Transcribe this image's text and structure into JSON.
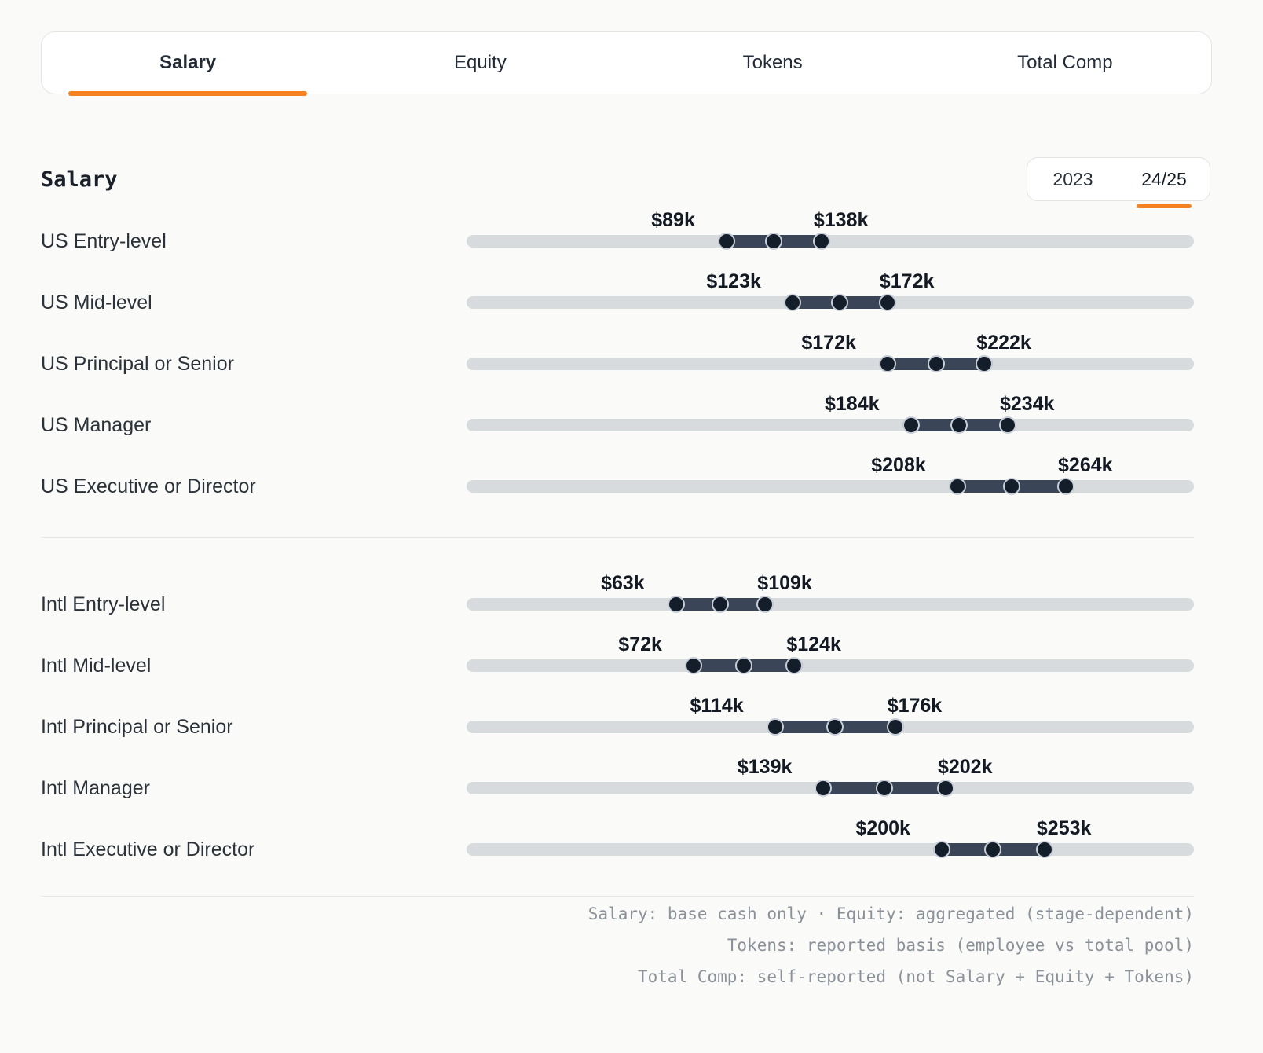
{
  "tabs": [
    {
      "label": "Salary",
      "active": true
    },
    {
      "label": "Equity",
      "active": false
    },
    {
      "label": "Tokens",
      "active": false
    },
    {
      "label": "Total Comp",
      "active": false
    }
  ],
  "section": {
    "title": "Salary"
  },
  "year_toggle": {
    "options": [
      "2023",
      "24/25"
    ],
    "selected": "24/25"
  },
  "chart_data": {
    "type": "bar",
    "variant": "horizontal-dumbbell-range",
    "title": "Salary",
    "unit": "USD thousands per year",
    "xlim": [
      -45,
      330
    ],
    "handles_per_row": [
      "min",
      "mid",
      "max"
    ],
    "groups": [
      {
        "name": "US",
        "rows": [
          {
            "label": "US Entry-level",
            "min": 89,
            "mid": 113.5,
            "max": 138,
            "min_label": "$89k",
            "max_label": "$138k"
          },
          {
            "label": "US Mid-level",
            "min": 123,
            "mid": 147.5,
            "max": 172,
            "min_label": "$123k",
            "max_label": "$172k"
          },
          {
            "label": "US Principal or Senior",
            "min": 172,
            "mid": 197,
            "max": 222,
            "min_label": "$172k",
            "max_label": "$222k"
          },
          {
            "label": "US Manager",
            "min": 184,
            "mid": 209,
            "max": 234,
            "min_label": "$184k",
            "max_label": "$234k"
          },
          {
            "label": "US Executive or Director",
            "min": 208,
            "mid": 236,
            "max": 264,
            "min_label": "$208k",
            "max_label": "$264k"
          }
        ]
      },
      {
        "name": "Intl",
        "rows": [
          {
            "label": "Intl Entry-level",
            "min": 63,
            "mid": 86,
            "max": 109,
            "min_label": "$63k",
            "max_label": "$109k"
          },
          {
            "label": "Intl Mid-level",
            "min": 72,
            "mid": 98,
            "max": 124,
            "min_label": "$72k",
            "max_label": "$124k"
          },
          {
            "label": "Intl Principal or Senior",
            "min": 114,
            "mid": 145,
            "max": 176,
            "min_label": "$114k",
            "max_label": "$176k"
          },
          {
            "label": "Intl Manager",
            "min": 139,
            "mid": 170.5,
            "max": 202,
            "min_label": "$139k",
            "max_label": "$202k"
          },
          {
            "label": "Intl Executive or Director",
            "min": 200,
            "mid": 226.5,
            "max": 253,
            "min_label": "$200k",
            "max_label": "$253k"
          }
        ]
      }
    ]
  },
  "footer": {
    "lines": [
      "Salary: base cash only · Equity: aggregated (stage-dependent)",
      "Tokens: reported basis (employee vs total pool)",
      "Total Comp: self-reported (not Salary + Equity + Tokens)"
    ]
  },
  "colors": {
    "accent": "#f5821f",
    "track": "#d8dbde",
    "range_fill": "#3a4657",
    "handle": "#141e2b",
    "handle_ring": "#c7ced7",
    "background": "#fafaf8"
  }
}
